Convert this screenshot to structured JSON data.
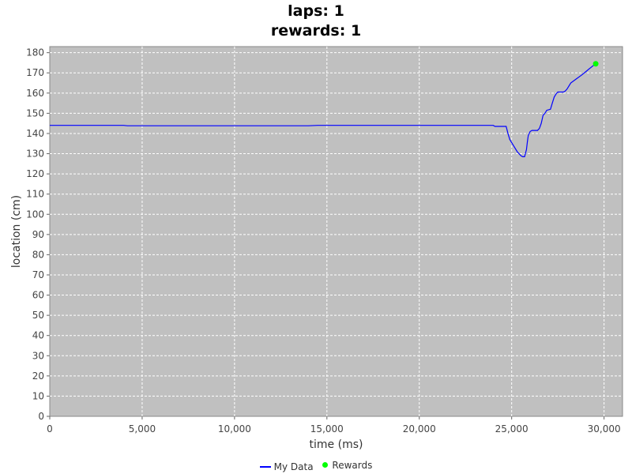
{
  "chart_data": {
    "type": "line",
    "title": [
      "laps: 1",
      "rewards: 1"
    ],
    "xlabel": "time (ms)",
    "ylabel": "location (cm)",
    "xlim": [
      0,
      31000
    ],
    "ylim": [
      0,
      183
    ],
    "x_ticks": [
      0,
      5000,
      10000,
      15000,
      20000,
      25000,
      30000
    ],
    "x_tick_labels": [
      "0",
      "5,000",
      "10,000",
      "15,000",
      "20,000",
      "25,000",
      "30,000"
    ],
    "y_ticks": [
      0,
      10,
      20,
      30,
      40,
      50,
      60,
      70,
      80,
      90,
      100,
      110,
      120,
      130,
      140,
      150,
      160,
      170,
      180
    ],
    "grid": true,
    "legend_position": "bottom-center",
    "series": [
      {
        "name": "My Data",
        "color": "#0000ff",
        "x": [
          0,
          4000,
          4200,
          12000,
          14000,
          14500,
          24000,
          24100,
          24700,
          24800,
          24900,
          25100,
          25300,
          25500,
          25600,
          25700,
          25800,
          25850,
          25900,
          26000,
          26100,
          26400,
          26500,
          26600,
          26700,
          26800,
          26900,
          27100,
          27200,
          27300,
          27400,
          27500,
          27800,
          27900,
          28000,
          28200,
          28500,
          28800,
          29000,
          29200,
          29400,
          29550
        ],
        "y": [
          144,
          144,
          143.8,
          143.8,
          143.8,
          144,
          144,
          143.5,
          143.5,
          140,
          137,
          134,
          131,
          129,
          128.5,
          128.5,
          132,
          136,
          139,
          141,
          141.5,
          141.5,
          142.5,
          145,
          149,
          150,
          151.5,
          152,
          155,
          158,
          159.5,
          160.5,
          160.5,
          161,
          162,
          165,
          167,
          169,
          170.5,
          172,
          173.5,
          174.5
        ]
      },
      {
        "name": "Rewards",
        "color": "#00ff00",
        "type": "scatter",
        "x": [
          29550
        ],
        "y": [
          174.5
        ]
      }
    ]
  }
}
